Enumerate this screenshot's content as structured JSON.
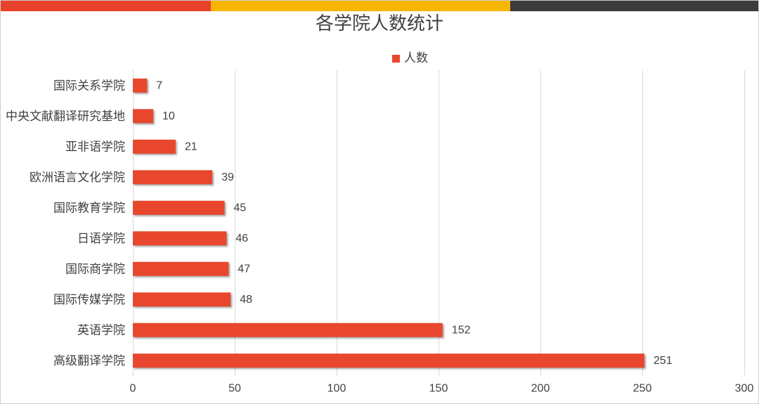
{
  "header_strip": {
    "colors": [
      "#e8412c",
      "#f6b600",
      "#3b3b3b"
    ]
  },
  "chart_data": {
    "type": "bar",
    "orientation": "horizontal",
    "title": "各学院人数统计",
    "categories": [
      "国际关系学院",
      "中央文献翻译研究基地",
      "亚非语学院",
      "欧洲语言文化学院",
      "国际教育学院",
      "日语学院",
      "国际商学院",
      "国际传媒学院",
      "英语学院",
      "高级翻译学院"
    ],
    "series": [
      {
        "name": "人数",
        "values": [
          7,
          10,
          21,
          39,
          45,
          46,
          47,
          48,
          152,
          251
        ],
        "color": "#e8472d"
      }
    ],
    "xlim": [
      0,
      300
    ],
    "xticks": [
      0,
      50,
      100,
      150,
      200,
      250,
      300
    ],
    "xlabel": "",
    "ylabel": "",
    "grid": true,
    "legend": "top",
    "data_labels": true
  }
}
